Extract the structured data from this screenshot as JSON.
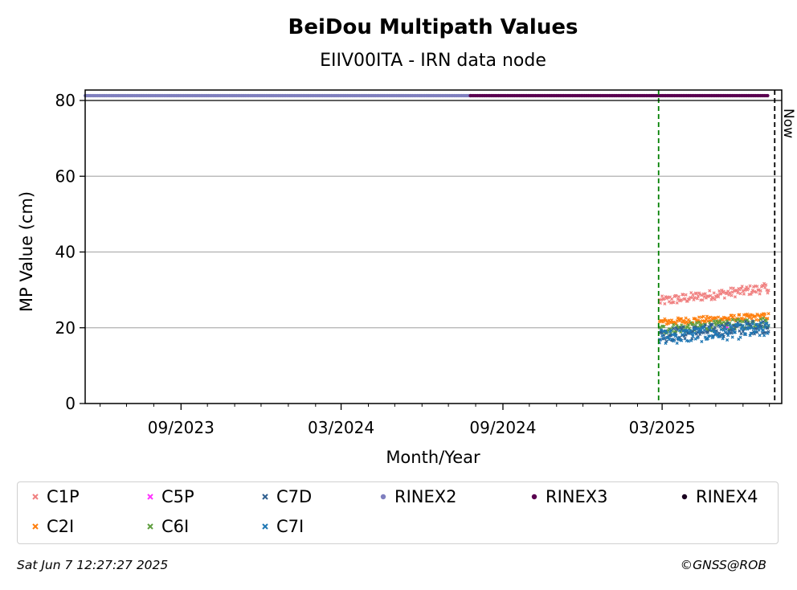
{
  "chart_data": {
    "type": "scatter",
    "title": "BeiDou Multipath Values",
    "subtitle": "EIIV00ITA - IRN data node",
    "xlabel": "Month/Year",
    "ylabel": "MP Value (cm)",
    "ylim": [
      0,
      80
    ],
    "yticks": [
      "0",
      "20",
      "40",
      "60",
      "80"
    ],
    "xlim": [
      "2023-05-15",
      "2025-07-15"
    ],
    "xticks": [
      {
        "date": "2023-09-01",
        "label": "09/2023"
      },
      {
        "date": "2024-03-01",
        "label": "03/2024"
      },
      {
        "date": "2024-09-01",
        "label": "09/2024"
      },
      {
        "date": "2025-03-01",
        "label": "03/2025"
      }
    ],
    "grid": "y",
    "vlines": [
      {
        "date": "2025-02-25",
        "color": "#008000",
        "style": "dashed"
      },
      {
        "date": "2025-07-07",
        "color": "#000000",
        "style": "dashed",
        "label": "Now"
      }
    ],
    "rinex_bars": [
      {
        "name": "RINEX2",
        "color": "#7f7fbf",
        "start": "2023-05-15",
        "end": "2024-07-26"
      },
      {
        "name": "RINEX3",
        "color": "#5a0050",
        "start": "2024-07-26",
        "end": "2025-06-30"
      }
    ],
    "series": [
      {
        "name": "C1P",
        "color": "#f08080",
        "start": "2025-02-26",
        "end": "2025-06-30",
        "base": 27.0,
        "end_value": 30.5,
        "spread": 1.3
      },
      {
        "name": "C2I",
        "color": "#ff7f0e",
        "start": "2025-02-26",
        "end": "2025-06-30",
        "base": 21.5,
        "end_value": 23.0,
        "spread": 0.9
      },
      {
        "name": "C5P",
        "color": "#ff33ff",
        "start": "2025-05-10",
        "end": "2025-05-14",
        "base": 20.0,
        "end_value": 20.0,
        "spread": 0.4
      },
      {
        "name": "C6I",
        "color": "#5f9e3f",
        "start": "2025-02-26",
        "end": "2025-06-30",
        "base": 19.5,
        "end_value": 21.5,
        "spread": 1.3
      },
      {
        "name": "C7D",
        "color": "#2f5f8f",
        "start": "2025-02-26",
        "end": "2025-06-30",
        "base": 18.0,
        "end_value": 20.5,
        "spread": 1.8
      },
      {
        "name": "C7I",
        "color": "#1f77b4",
        "start": "2025-02-26",
        "end": "2025-06-30",
        "base": 17.5,
        "end_value": 19.5,
        "spread": 2.0
      }
    ]
  },
  "legend": {
    "items": [
      {
        "label": "C1P",
        "marker": "x",
        "color": "#f08080"
      },
      {
        "label": "C5P",
        "marker": "x",
        "color": "#ff33ff"
      },
      {
        "label": "C7D",
        "marker": "x",
        "color": "#2f5f8f"
      },
      {
        "label": "RINEX2",
        "marker": "dot",
        "color": "#7f7fbf"
      },
      {
        "label": "RINEX3",
        "marker": "dot",
        "color": "#5a0050"
      },
      {
        "label": "RINEX4",
        "marker": "dot",
        "color": "#1a0020"
      },
      {
        "label": "C2I",
        "marker": "x",
        "color": "#ff7f0e"
      },
      {
        "label": "C6I",
        "marker": "x",
        "color": "#5f9e3f"
      },
      {
        "label": "C7I",
        "marker": "x",
        "color": "#1f77b4"
      }
    ]
  },
  "footer": {
    "timestamp": "Sat Jun  7 12:27:27 2025",
    "copyright": "©GNSS@ROB"
  }
}
